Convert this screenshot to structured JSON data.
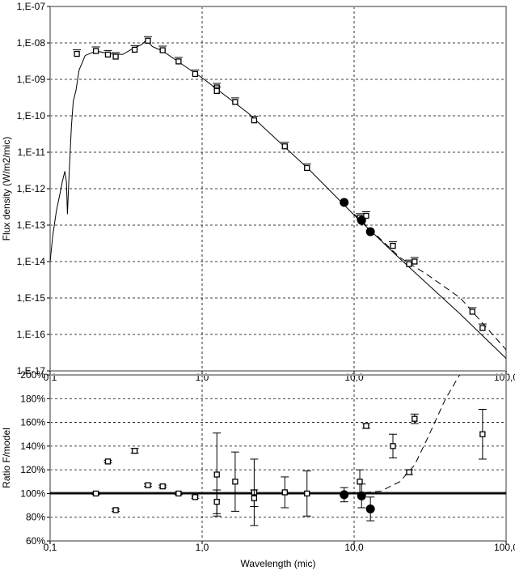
{
  "chart_data": [
    {
      "type": "scatter",
      "xscale": "log",
      "yscale": "log",
      "xlim": [
        0.1,
        100
      ],
      "ylim": [
        1e-17,
        1e-07
      ],
      "xlabel": "",
      "ylabel": "Flux density (W/m2/mic)",
      "x_tick_labels": [
        "0,1",
        "1,0",
        "10,0",
        "100,0"
      ],
      "y_tick_labels": [
        "1,E-07",
        "1,E-08",
        "1,E-09",
        "1,E-10",
        "1,E-11",
        "1,E-12",
        "1,E-13",
        "1,E-14",
        "1,E-15",
        "1,E-16",
        "1,E-17"
      ],
      "grid": true,
      "series": [
        {
          "style": "open-square",
          "points": [
            [
              0.15,
              5e-09
            ],
            [
              0.2,
              6e-09
            ],
            [
              0.24,
              4.8e-09
            ],
            [
              0.27,
              4.2e-09
            ],
            [
              0.36,
              6.5e-09
            ],
            [
              0.44,
              1.15e-08
            ],
            [
              0.55,
              6.3e-09
            ],
            [
              0.7,
              3.1e-09
            ],
            [
              0.9,
              1.4e-09
            ],
            [
              1.25,
              6e-10
            ],
            [
              1.25,
              4.8e-10
            ],
            [
              1.65,
              2.4e-10
            ],
            [
              2.2,
              7.5e-11
            ],
            [
              3.5,
              1.45e-11
            ],
            [
              4.9,
              3.7e-12
            ],
            [
              10.9,
              1.6e-13
            ],
            [
              12,
              1.8e-13
            ],
            [
              18,
              2.7e-14
            ],
            [
              23,
              8.5e-15
            ],
            [
              25,
              1e-14
            ],
            [
              60,
              4.2e-16
            ],
            [
              70,
              1.5e-16
            ]
          ]
        },
        {
          "style": "filled-circle",
          "points": [
            [
              8.6,
              4.2e-13
            ],
            [
              11.2,
              1.35e-13
            ],
            [
              12.8,
              6.6e-14
            ]
          ]
        },
        {
          "style": "solid-line",
          "points": [
            [
              0.1,
              1e-14
            ],
            [
              0.104,
              5e-14
            ],
            [
              0.11,
              2.5e-13
            ],
            [
              0.115,
              6e-13
            ],
            [
              0.12,
              1.5e-12
            ],
            [
              0.125,
              3e-12
            ],
            [
              0.128,
              1.5e-12
            ],
            [
              0.13,
              2e-13
            ],
            [
              0.133,
              2e-12
            ],
            [
              0.138,
              5e-11
            ],
            [
              0.142,
              2.5e-10
            ],
            [
              0.148,
              5e-10
            ],
            [
              0.155,
              1.8e-09
            ],
            [
              0.17,
              4.5e-09
            ],
            [
              0.2,
              6e-09
            ],
            [
              0.25,
              5e-09
            ],
            [
              0.3,
              4.8e-09
            ],
            [
              0.35,
              7e-09
            ],
            [
              0.4,
              9e-09
            ],
            [
              0.43,
              1.2e-08
            ],
            [
              0.47,
              8e-09
            ],
            [
              0.55,
              6e-09
            ],
            [
              0.7,
              3e-09
            ],
            [
              1,
              1.1e-09
            ],
            [
              2,
              1.2e-10
            ],
            [
              5,
              3.5e-12
            ],
            [
              10,
              1.9e-13
            ],
            [
              20,
              1.2e-14
            ],
            [
              50,
              3.6e-16
            ],
            [
              100,
              2.2e-17
            ]
          ]
        },
        {
          "style": "dashed-line",
          "points": [
            [
              10,
              2e-13
            ],
            [
              20,
              1.3e-14
            ],
            [
              30,
              4.5e-15
            ],
            [
              50,
              1e-15
            ],
            [
              100,
              3.8e-17
            ]
          ]
        }
      ]
    },
    {
      "type": "scatter",
      "xscale": "log",
      "xlim": [
        0.1,
        100
      ],
      "ylim": [
        60,
        200
      ],
      "xlabel": "Wavelength (mic)",
      "ylabel": "Ratio F/model",
      "x_tick_labels": [
        "0,1",
        "1,0",
        "10,0",
        "100,0"
      ],
      "y_tick_labels": [
        "200%",
        "180%",
        "160%",
        "140%",
        "120%",
        "100%",
        "80%",
        "60%"
      ],
      "grid": true,
      "reference_line": 100,
      "series": [
        {
          "style": "open-square",
          "points": [
            {
              "x": 0.2,
              "y": 100,
              "err": 1
            },
            {
              "x": 0.24,
              "y": 127,
              "err": 1
            },
            {
              "x": 0.27,
              "y": 86,
              "err": 1
            },
            {
              "x": 0.36,
              "y": 136,
              "err": 2
            },
            {
              "x": 0.44,
              "y": 107,
              "err": 1
            },
            {
              "x": 0.55,
              "y": 106,
              "err": 1
            },
            {
              "x": 0.7,
              "y": 100,
              "err": 1
            },
            {
              "x": 0.9,
              "y": 97,
              "err": 1
            },
            {
              "x": 1.25,
              "y": 116,
              "err": 35
            },
            {
              "x": 1.25,
              "y": 93,
              "err": 10
            },
            {
              "x": 1.65,
              "y": 110,
              "err": 25
            },
            {
              "x": 2.2,
              "y": 101,
              "err": 28
            },
            {
              "x": 2.2,
              "y": 96,
              "err": 7
            },
            {
              "x": 3.5,
              "y": 101,
              "err": 13
            },
            {
              "x": 4.9,
              "y": 100,
              "err": 19
            },
            {
              "x": 10.9,
              "y": 110,
              "err": 10
            },
            {
              "x": 12,
              "y": 157,
              "err": 2
            },
            {
              "x": 18,
              "y": 140,
              "err": 10
            },
            {
              "x": 23,
              "y": 118,
              "err": 2
            },
            {
              "x": 25,
              "y": 163,
              "err": 4
            },
            {
              "x": 70,
              "y": 150,
              "err": 21
            }
          ]
        },
        {
          "style": "filled-circle",
          "points": [
            {
              "x": 8.6,
              "y": 99,
              "err": 6
            },
            {
              "x": 11.2,
              "y": 98,
              "err": 10
            },
            {
              "x": 12.8,
              "y": 87,
              "err": 10
            }
          ]
        },
        {
          "style": "dashed-line",
          "points": [
            [
              10,
              100
            ],
            [
              15,
              102
            ],
            [
              20,
              110
            ],
            [
              25,
              124
            ],
            [
              30,
              145
            ],
            [
              40,
              180
            ],
            [
              50,
              201
            ]
          ]
        },
        {
          "style": "thin-line",
          "points": [
            [
              0.1,
              101
            ],
            [
              100,
              101
            ]
          ]
        }
      ]
    }
  ]
}
